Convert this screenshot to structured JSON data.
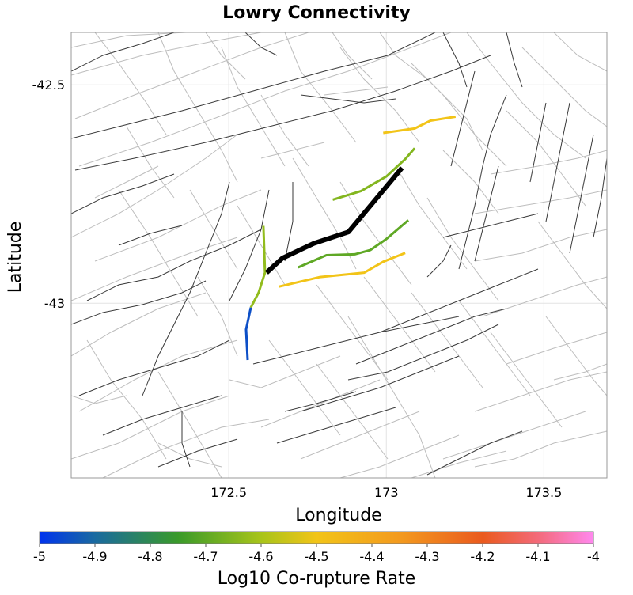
{
  "chart_data": {
    "type": "map",
    "title": "Lowry Connectivity",
    "xlabel": "Longitude",
    "ylabel": "Latitude",
    "xlim": [
      172.0,
      173.7
    ],
    "ylim": [
      -43.4,
      -42.38
    ],
    "x_ticks": [
      172.5,
      173,
      173.5
    ],
    "x_tick_labels": [
      "172.5",
      "173",
      "173.5"
    ],
    "y_ticks": [
      -42.5,
      -43
    ],
    "y_tick_labels": [
      "-42.5",
      "-43"
    ],
    "grid": true,
    "background_faults_dark_color": "#3a3a3a",
    "background_faults_light_color": "#bdbdbd",
    "selected_fault": {
      "name": "Lowry",
      "color": "#000000",
      "trace": [
        [
          172.62,
          -42.93
        ],
        [
          172.67,
          -42.897
        ],
        [
          172.77,
          -42.863
        ],
        [
          172.88,
          -42.837
        ],
        [
          173.05,
          -42.69
        ]
      ]
    },
    "corupture_faults": [
      {
        "log10_rate": -4.5,
        "trace": [
          [
            172.99,
            -42.61
          ],
          [
            173.09,
            -42.6
          ],
          [
            173.14,
            -42.582
          ],
          [
            173.22,
            -42.573
          ]
        ]
      },
      {
        "log10_rate": -4.65,
        "trace": [
          [
            172.83,
            -42.763
          ],
          [
            172.92,
            -42.743
          ],
          [
            173.0,
            -42.71
          ],
          [
            173.06,
            -42.67
          ],
          [
            173.09,
            -42.645
          ]
        ]
      },
      {
        "log10_rate": -4.7,
        "trace": [
          [
            172.72,
            -42.918
          ],
          [
            172.81,
            -42.89
          ],
          [
            172.9,
            -42.888
          ],
          [
            172.95,
            -42.878
          ],
          [
            173.0,
            -42.853
          ],
          [
            173.07,
            -42.81
          ]
        ]
      },
      {
        "log10_rate": -4.5,
        "trace": [
          [
            172.66,
            -42.962
          ],
          [
            172.79,
            -42.94
          ],
          [
            172.93,
            -42.93
          ],
          [
            172.99,
            -42.905
          ],
          [
            173.06,
            -42.885
          ]
        ]
      },
      {
        "log10_rate": -4.63,
        "trace": [
          [
            172.61,
            -42.823
          ],
          [
            172.615,
            -42.93
          ],
          [
            172.595,
            -42.975
          ],
          [
            172.57,
            -43.01
          ]
        ]
      },
      {
        "log10_rate": -4.95,
        "trace": [
          [
            172.57,
            -43.01
          ],
          [
            172.555,
            -43.06
          ],
          [
            172.56,
            -43.13
          ]
        ]
      }
    ],
    "colorbar": {
      "label": "Log10 Co-rupture Rate",
      "min": -5,
      "max": -4,
      "tick_values": [
        -5,
        -4.9,
        -4.8,
        -4.7,
        -4.6,
        -4.5,
        -4.4,
        -4.3,
        -4.2,
        -4.1,
        -4
      ],
      "tick_labels": [
        "-5",
        "-4.9",
        "-4.8",
        "-4.7",
        "-4.6",
        "-4.5",
        "-4.4",
        "-4.3",
        "-4.2",
        "-4.1",
        "-4"
      ],
      "stops": [
        {
          "value": -5.0,
          "color": "#0033ee"
        },
        {
          "value": -4.9,
          "color": "#1a6aa0"
        },
        {
          "value": -4.75,
          "color": "#3a9a2a"
        },
        {
          "value": -4.6,
          "color": "#a8c41a"
        },
        {
          "value": -4.5,
          "color": "#f2c418"
        },
        {
          "value": -4.35,
          "color": "#f39a1e"
        },
        {
          "value": -4.2,
          "color": "#ea5a1e"
        },
        {
          "value": -4.1,
          "color": "#f36a7a"
        },
        {
          "value": -4.0,
          "color": "#ff88ee"
        }
      ]
    }
  }
}
